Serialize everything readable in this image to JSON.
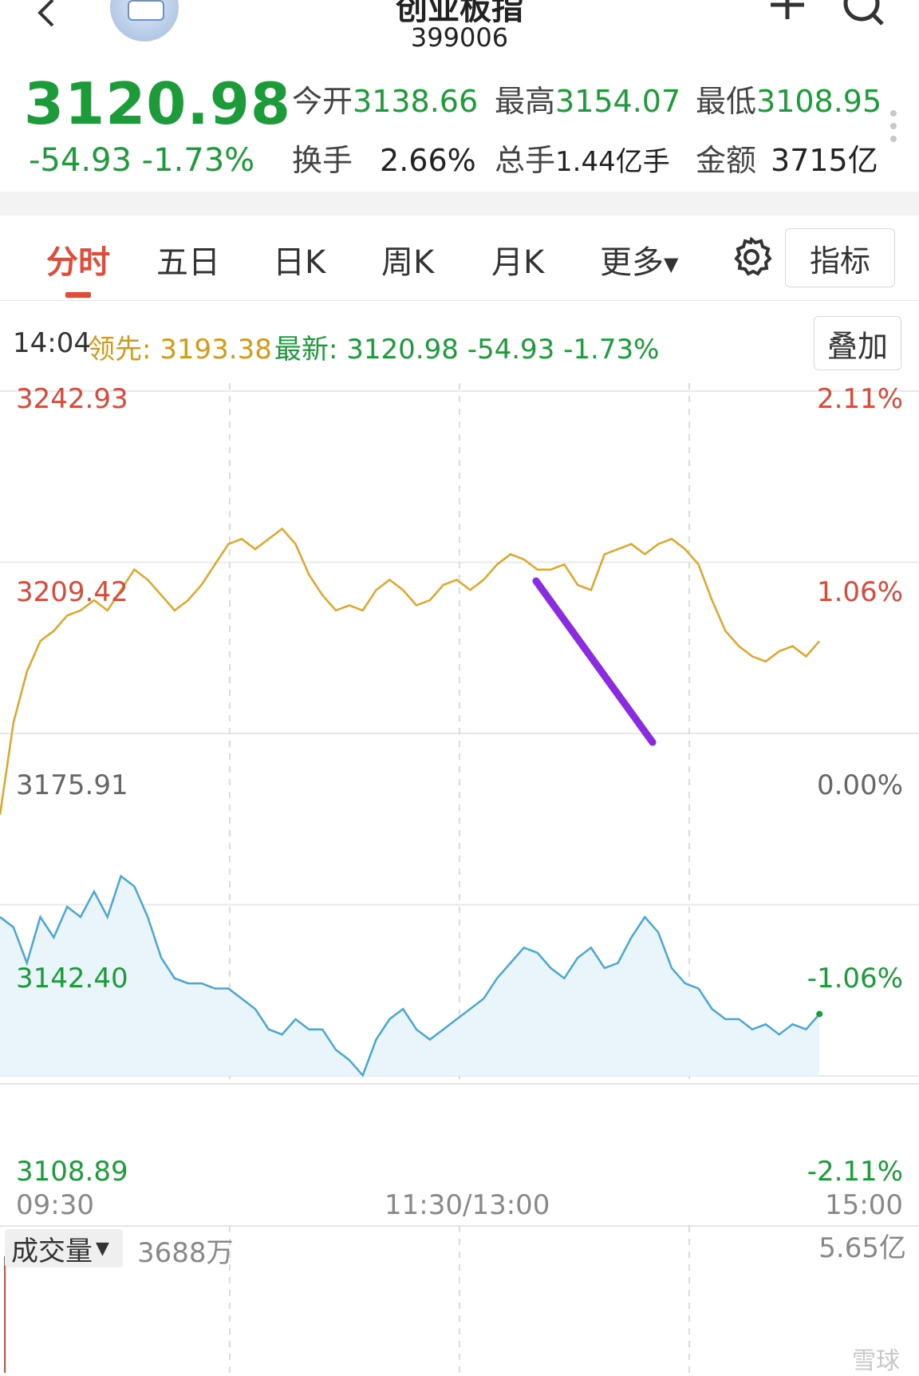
{
  "header": {
    "title": "创业板指",
    "code": "399006"
  },
  "quote": {
    "price": "3120.98",
    "change": "-54.93",
    "change_pct": "-1.73%",
    "stats": [
      {
        "label": "今开",
        "value": "3138.66"
      },
      {
        "label": "最高",
        "value": "3154.07"
      },
      {
        "label": "最低",
        "value": "3108.95"
      },
      {
        "label": "换手",
        "value": "2.66%"
      },
      {
        "label": "总手",
        "value": "1.44亿手"
      },
      {
        "label": "金额",
        "value": "3715亿"
      }
    ]
  },
  "tabs": [
    {
      "label": "分时",
      "active": true
    },
    {
      "label": "五日"
    },
    {
      "label": "日K"
    },
    {
      "label": "周K"
    },
    {
      "label": "月K"
    },
    {
      "label": "更多"
    }
  ],
  "toolbar": {
    "index_label": "指标",
    "overlay_label": "叠加"
  },
  "info": {
    "time": "14:04",
    "lead_label": "领先:",
    "lead_value": "3193.38",
    "new_label": "最新:",
    "new_value": "3120.98",
    "new_change": "-54.93",
    "new_pct": "-1.73%"
  },
  "colors": {
    "up": "#d64b3b",
    "down": "#1d9b3a",
    "neutral": "#666666",
    "lead_line": "#e0a52a",
    "price_line": "#4aa6d6",
    "price_fill": "#eaf4fb",
    "annotation": "#8a2be2"
  },
  "chart_data": {
    "type": "line",
    "left_axis": [
      "3242.93",
      "3209.42",
      "3175.91",
      "3142.40",
      "3108.89"
    ],
    "right_axis": [
      "2.11%",
      "1.06%",
      "0.00%",
      "-1.06%",
      "-2.11%"
    ],
    "x_ticks": [
      "09:30",
      "11:30/13:00",
      "15:00"
    ],
    "ylim": [
      3108.89,
      3242.93
    ],
    "prev_close": 3175.91,
    "series": [
      {
        "name": "领先",
        "values": [
          3160,
          3178,
          3188,
          3194,
          3196,
          3199,
          3200,
          3202,
          3200,
          3204,
          3208,
          3206,
          3203,
          3200,
          3202,
          3205,
          3209,
          3213,
          3214,
          3212,
          3214,
          3216,
          3213,
          3207,
          3203,
          3200,
          3201,
          3200,
          3204,
          3206,
          3204,
          3201,
          3202,
          3205,
          3206,
          3204,
          3206,
          3209,
          3211,
          3210,
          3208,
          3208,
          3209,
          3205,
          3204,
          3211,
          3212,
          3213,
          3211,
          3213,
          3214,
          3212,
          3209,
          3202,
          3196,
          3193,
          3191,
          3190,
          3192,
          3193,
          3191,
          3194
        ]
      },
      {
        "name": "最新",
        "values": [
          3140,
          3138,
          3131,
          3140,
          3136,
          3142,
          3140,
          3145,
          3140,
          3148,
          3146,
          3140,
          3132,
          3128,
          3127,
          3127,
          3126,
          3126,
          3124,
          3122,
          3118,
          3117,
          3120,
          3118,
          3118,
          3114,
          3112,
          3109,
          3116,
          3120,
          3122,
          3118,
          3116,
          3118,
          3120,
          3122,
          3124,
          3128,
          3131,
          3134,
          3133,
          3130,
          3128,
          3132,
          3134,
          3130,
          3131,
          3136,
          3140,
          3137,
          3130,
          3127,
          3126,
          3122,
          3120,
          3120,
          3118,
          3119,
          3117,
          3119,
          3118,
          3121
        ]
      }
    ]
  },
  "volume": {
    "selector_label": "成交量",
    "current": "3688万",
    "max": "5.65亿"
  },
  "watermark": "雪球"
}
